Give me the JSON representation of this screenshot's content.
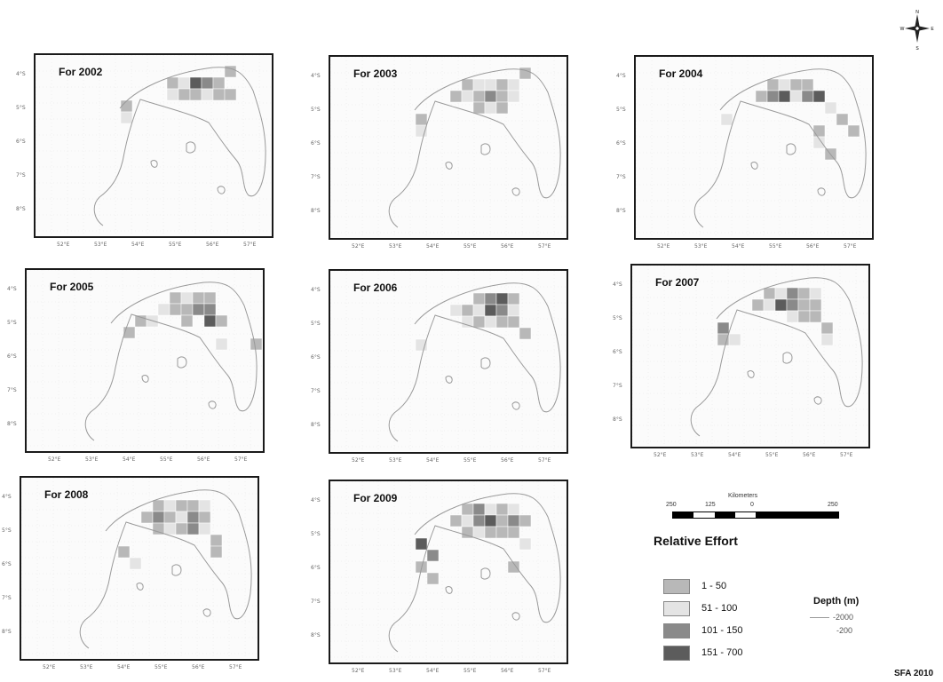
{
  "panels": [
    {
      "title": "For 2002"
    },
    {
      "title": "For 2003"
    },
    {
      "title": "For 2004"
    },
    {
      "title": "For 2005"
    },
    {
      "title": "For 2006"
    },
    {
      "title": "For 2007"
    },
    {
      "title": "For 2008"
    },
    {
      "title": "For 2009"
    }
  ],
  "latitude_labels": [
    "4°S",
    "5°S",
    "6°S",
    "7°S",
    "8°S"
  ],
  "longitude_labels": [
    "52°E",
    "53°E",
    "54°E",
    "55°E",
    "56°E",
    "57°E"
  ],
  "scale": {
    "unit": "Kilometers",
    "ticks": [
      "250",
      "125",
      "0",
      "250"
    ]
  },
  "legend": {
    "title": "Relative Effort",
    "classes": [
      {
        "label": "1 - 50",
        "color": "#b8b8b8"
      },
      {
        "label": "51 - 100",
        "color": "#e4e4e4"
      },
      {
        "label": "101 - 150",
        "color": "#8a8a8a"
      },
      {
        "label": "151 - 700",
        "color": "#5c5c5c"
      }
    ]
  },
  "depth_legend": {
    "title": "Depth (m)",
    "items": [
      "-2000",
      "-200"
    ]
  },
  "credit": "SFA 2010",
  "compass": {
    "north": "N",
    "south": "S",
    "east": "E",
    "west": "W"
  }
}
